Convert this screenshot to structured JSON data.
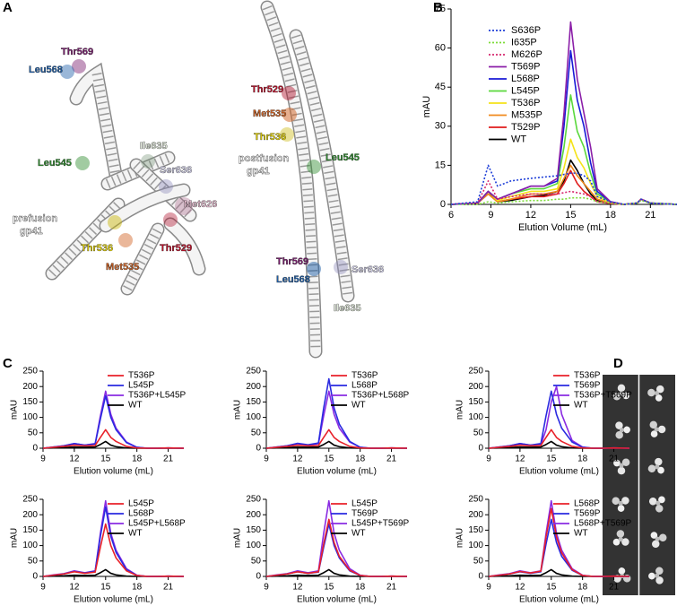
{
  "panel_labels": [
    "A",
    "B",
    "C",
    "D"
  ],
  "structures": {
    "prefusion": {
      "caption": [
        "prefusion",
        "gp41"
      ],
      "residues": [
        "Thr569",
        "Leu568",
        "Ile635",
        "Ser636",
        "Leu545",
        "Met626",
        "Thr536",
        "Thr529",
        "Met535"
      ]
    },
    "postfusion": {
      "caption": [
        "postfusion",
        "gp41"
      ],
      "residues": [
        "Thr529",
        "Met535",
        "Thr536",
        "Leu545",
        "Thr569",
        "Ser636",
        "Leu568",
        "Ile635"
      ]
    }
  },
  "chart_data": [
    {
      "type": "line",
      "x_label": "Elution Volume (mL)",
      "y_label": "mAU",
      "x": [
        6,
        8,
        8.8,
        9.5,
        10.5,
        12,
        13,
        14,
        14.5,
        15,
        15.5,
        16,
        16.5,
        17,
        18,
        19,
        20,
        20.3,
        21,
        23
      ],
      "xlim": [
        6,
        22.8
      ],
      "xticks": [
        6,
        9,
        12,
        15,
        18,
        21
      ],
      "ylim": [
        0,
        75
      ],
      "yticks": [
        0,
        15,
        30,
        45,
        60,
        75
      ],
      "series": [
        {
          "name": "S636P",
          "color": "#1f3fd8",
          "style": "dotted",
          "values": [
            0,
            1,
            15,
            7,
            9,
            10,
            10.5,
            11,
            11.5,
            12,
            12,
            11,
            9,
            3,
            1,
            0,
            0.5,
            2,
            0.5,
            0
          ]
        },
        {
          "name": "I635P",
          "color": "#7ddc3a",
          "style": "dotted",
          "values": [
            0,
            0,
            1,
            0.5,
            1,
            1.5,
            1.5,
            2,
            2,
            2.5,
            2.5,
            2.5,
            2,
            1,
            0.5,
            0,
            0.5,
            1.5,
            0.5,
            0
          ]
        },
        {
          "name": "M626P",
          "color": "#d6286e",
          "style": "dotted",
          "values": [
            0,
            0.5,
            9,
            2,
            3,
            4,
            4,
            4,
            4.5,
            5,
            4.5,
            4,
            3,
            1,
            0.5,
            0,
            0.5,
            2,
            0.5,
            0
          ]
        },
        {
          "name": "T569P",
          "color": "#8b1fa8",
          "style": "solid",
          "values": [
            0,
            0.5,
            5,
            2,
            4,
            7,
            7,
            10,
            35,
            70,
            48,
            35,
            22,
            6,
            1,
            0,
            0.5,
            2,
            0.5,
            0
          ]
        },
        {
          "name": "L568P",
          "color": "#1a1ad6",
          "style": "solid",
          "values": [
            0,
            0.5,
            5,
            2,
            4,
            7,
            7,
            9,
            30,
            59,
            40,
            30,
            16,
            5,
            1,
            0,
            0.5,
            2,
            0.5,
            0
          ]
        },
        {
          "name": "L545P",
          "color": "#5ad83c",
          "style": "solid",
          "values": [
            0,
            0.5,
            5,
            2,
            4,
            6,
            6,
            8,
            22,
            42,
            28,
            22,
            12,
            4,
            1,
            0,
            0.5,
            2,
            0.5,
            0
          ]
        },
        {
          "name": "T536P",
          "color": "#f5e31a",
          "style": "solid",
          "values": [
            0,
            0.5,
            5,
            1.5,
            3,
            5,
            5,
            6,
            14,
            25,
            18,
            14,
            8,
            3,
            0.5,
            0,
            0.5,
            2,
            0.5,
            0
          ]
        },
        {
          "name": "M535P",
          "color": "#f08a1e",
          "style": "solid",
          "values": [
            0,
            0.5,
            4,
            1,
            2,
            4,
            4,
            5,
            10,
            15,
            11,
            8,
            5,
            2,
            0.5,
            0,
            0.5,
            2,
            0.5,
            0
          ]
        },
        {
          "name": "T529P",
          "color": "#e01c1c",
          "style": "solid",
          "values": [
            0,
            0.5,
            4,
            1,
            2,
            3,
            3,
            4,
            8,
            13,
            8,
            5,
            3,
            1,
            0.3,
            0,
            0.5,
            2,
            0.5,
            0
          ]
        },
        {
          "name": "WT",
          "color": "#000000",
          "style": "solid",
          "values": [
            0,
            0.5,
            5,
            1,
            1.5,
            3,
            3.5,
            5,
            9,
            17,
            13,
            8,
            4,
            1.5,
            0.3,
            0,
            0.5,
            2,
            0.5,
            0
          ]
        }
      ]
    },
    {
      "type": "line",
      "x_label": "Elution volume (mL)",
      "y_label": "mAU",
      "x": [
        9,
        10,
        11,
        12,
        13,
        14,
        14.5,
        15,
        15.5,
        16,
        17,
        18,
        19,
        20,
        21,
        22.5
      ],
      "xlim": [
        9,
        22.5
      ],
      "xticks": [
        9,
        12,
        15,
        18,
        21
      ],
      "ylim": [
        0,
        250
      ],
      "yticks": [
        0,
        50,
        100,
        150,
        200,
        250
      ],
      "series": [
        {
          "name": "T536P",
          "color": "#e8212a",
          "style": "solid",
          "values": [
            0,
            3,
            6,
            10,
            8,
            9,
            35,
            60,
            35,
            22,
            6,
            1,
            0,
            0,
            1,
            0
          ]
        },
        {
          "name": "L545P",
          "color": "#2a2ae0",
          "style": "solid",
          "values": [
            0,
            4,
            8,
            15,
            10,
            14,
            95,
            170,
            100,
            60,
            18,
            3,
            0,
            0,
            1,
            0
          ]
        },
        {
          "name": "T536P+L545P",
          "color": "#8a2be2",
          "style": "solid",
          "values": [
            0,
            4,
            8,
            15,
            10,
            15,
            105,
            185,
            110,
            65,
            20,
            3,
            0,
            0,
            1,
            0
          ]
        },
        {
          "name": "WT",
          "color": "#000000",
          "style": "solid",
          "values": [
            0,
            1,
            2,
            4,
            3,
            4,
            12,
            22,
            10,
            5,
            1,
            0,
            0,
            0,
            0.5,
            0
          ]
        }
      ]
    },
    {
      "type": "line",
      "x_label": "Elution volume (mL)",
      "y_label": "mAU",
      "x": [
        9,
        10,
        11,
        12,
        13,
        14,
        14.5,
        15,
        15.5,
        16,
        17,
        18,
        19,
        20,
        21,
        22.5
      ],
      "xlim": [
        9,
        22.5
      ],
      "xticks": [
        9,
        12,
        15,
        18,
        21
      ],
      "ylim": [
        0,
        250
      ],
      "yticks": [
        0,
        50,
        100,
        150,
        200,
        250
      ],
      "series": [
        {
          "name": "T536P",
          "color": "#e8212a",
          "style": "solid",
          "values": [
            0,
            3,
            6,
            10,
            8,
            9,
            35,
            60,
            35,
            22,
            6,
            1,
            0,
            0,
            1,
            0
          ]
        },
        {
          "name": "L568P",
          "color": "#2a2ae0",
          "style": "solid",
          "values": [
            0,
            4,
            8,
            16,
            11,
            17,
            130,
            225,
            130,
            78,
            22,
            3,
            0,
            0,
            1,
            0
          ]
        },
        {
          "name": "T536P+L568P",
          "color": "#8a2be2",
          "style": "solid",
          "values": [
            0,
            4,
            8,
            15,
            10,
            15,
            105,
            185,
            110,
            65,
            20,
            3,
            0,
            0,
            1,
            0
          ]
        },
        {
          "name": "WT",
          "color": "#000000",
          "style": "solid",
          "values": [
            0,
            1,
            2,
            4,
            3,
            4,
            12,
            22,
            10,
            5,
            1,
            0,
            0,
            0,
            0.5,
            0
          ]
        }
      ]
    },
    {
      "type": "line",
      "x_label": "Elution volume (mL)",
      "y_label": "mAU",
      "x": [
        9,
        10,
        11,
        12,
        13,
        14,
        14.5,
        15,
        15.5,
        16,
        17,
        18,
        19,
        20,
        21,
        22.5
      ],
      "xlim": [
        9,
        22.5
      ],
      "xticks": [
        9,
        12,
        15,
        18,
        21
      ],
      "ylim": [
        0,
        250
      ],
      "yticks": [
        0,
        50,
        100,
        150,
        200,
        250
      ],
      "series": [
        {
          "name": "T536P",
          "color": "#e8212a",
          "style": "solid",
          "values": [
            0,
            3,
            6,
            10,
            8,
            9,
            35,
            60,
            35,
            22,
            6,
            1,
            0,
            0,
            1,
            0
          ]
        },
        {
          "name": "T569P",
          "color": "#2a2ae0",
          "style": "solid",
          "values": [
            0,
            4,
            8,
            15,
            10,
            15,
            105,
            185,
            110,
            65,
            20,
            3,
            0,
            0,
            1,
            0
          ]
        },
        {
          "name": "T536P+T569P",
          "color": "#8a2be2",
          "style": "solid",
          "values": [
            0,
            4,
            8,
            15,
            10,
            12,
            60,
            150,
            200,
            110,
            25,
            4,
            0,
            0,
            1,
            0
          ]
        },
        {
          "name": "WT",
          "color": "#000000",
          "style": "solid",
          "values": [
            0,
            1,
            2,
            4,
            3,
            4,
            12,
            22,
            10,
            5,
            1,
            0,
            0,
            0,
            0.5,
            0
          ]
        }
      ]
    },
    {
      "type": "line",
      "x_label": "Elution volume (mL)",
      "y_label": "mAU",
      "x": [
        9,
        10,
        11,
        12,
        13,
        14,
        14.5,
        15,
        15.5,
        16,
        17,
        18,
        19,
        20,
        21,
        22.5
      ],
      "xlim": [
        9,
        22.5
      ],
      "xticks": [
        9,
        12,
        15,
        18,
        21
      ],
      "ylim": [
        0,
        250
      ],
      "yticks": [
        0,
        50,
        100,
        150,
        200,
        250
      ],
      "series": [
        {
          "name": "L545P",
          "color": "#e8212a",
          "style": "solid",
          "values": [
            0,
            4,
            8,
            15,
            10,
            14,
            95,
            170,
            100,
            60,
            18,
            3,
            0,
            0,
            1,
            0
          ]
        },
        {
          "name": "L568P",
          "color": "#2a2ae0",
          "style": "solid",
          "values": [
            0,
            4,
            8,
            16,
            11,
            17,
            130,
            225,
            130,
            78,
            22,
            3,
            0,
            0,
            1,
            0
          ]
        },
        {
          "name": "L545P+L568P",
          "color": "#8a2be2",
          "style": "solid",
          "values": [
            0,
            5,
            9,
            18,
            12,
            18,
            140,
            245,
            140,
            85,
            25,
            4,
            0,
            0,
            1,
            0
          ]
        },
        {
          "name": "WT",
          "color": "#000000",
          "style": "solid",
          "values": [
            0,
            1,
            2,
            4,
            3,
            4,
            12,
            22,
            10,
            5,
            1,
            0,
            0,
            0,
            0.5,
            0
          ]
        }
      ]
    },
    {
      "type": "line",
      "x_label": "Elution volume (mL)",
      "y_label": "mAU",
      "x": [
        9,
        10,
        11,
        12,
        13,
        14,
        14.5,
        15,
        15.5,
        16,
        17,
        18,
        19,
        20,
        21,
        22.5
      ],
      "xlim": [
        9,
        22.5
      ],
      "xticks": [
        9,
        12,
        15,
        18,
        21
      ],
      "ylim": [
        0,
        250
      ],
      "yticks": [
        0,
        50,
        100,
        150,
        200,
        250
      ],
      "series": [
        {
          "name": "L545P",
          "color": "#e8212a",
          "style": "solid",
          "values": [
            0,
            4,
            8,
            15,
            10,
            15,
            105,
            185,
            110,
            65,
            20,
            3,
            0,
            0,
            1,
            0
          ]
        },
        {
          "name": "T569P",
          "color": "#2a2ae0",
          "style": "solid",
          "values": [
            0,
            4,
            8,
            15,
            10,
            14,
            95,
            170,
            100,
            60,
            18,
            3,
            0,
            0,
            1,
            0
          ]
        },
        {
          "name": "L545P+T569P",
          "color": "#8a2be2",
          "style": "solid",
          "values": [
            0,
            5,
            9,
            18,
            12,
            18,
            140,
            245,
            140,
            85,
            25,
            4,
            0,
            0,
            1,
            0
          ]
        },
        {
          "name": "WT",
          "color": "#000000",
          "style": "solid",
          "values": [
            0,
            1,
            2,
            4,
            3,
            4,
            12,
            22,
            10,
            5,
            1,
            0,
            0,
            0,
            0.5,
            0
          ]
        }
      ]
    },
    {
      "type": "line",
      "x_label": "Elution volume (mL)",
      "y_label": "mAU",
      "x": [
        9,
        10,
        11,
        12,
        13,
        14,
        14.5,
        15,
        15.5,
        16,
        17,
        18,
        19,
        20,
        21,
        22.5
      ],
      "xlim": [
        9,
        22.5
      ],
      "xticks": [
        9,
        12,
        15,
        18,
        21
      ],
      "ylim": [
        0,
        250
      ],
      "yticks": [
        0,
        50,
        100,
        150,
        200,
        250
      ],
      "series": [
        {
          "name": "L568P",
          "color": "#e8212a",
          "style": "solid",
          "values": [
            0,
            4,
            8,
            16,
            11,
            17,
            128,
            220,
            128,
            76,
            22,
            3,
            0,
            0,
            1,
            0
          ]
        },
        {
          "name": "T569P",
          "color": "#2a2ae0",
          "style": "solid",
          "values": [
            0,
            4,
            8,
            15,
            10,
            15,
            105,
            185,
            110,
            65,
            20,
            3,
            0,
            0,
            1,
            0
          ]
        },
        {
          "name": "L568P+T569P",
          "color": "#8a2be2",
          "style": "solid",
          "values": [
            0,
            5,
            9,
            18,
            12,
            18,
            140,
            245,
            140,
            85,
            25,
            4,
            0,
            0,
            1,
            0
          ]
        },
        {
          "name": "WT",
          "color": "#000000",
          "style": "solid",
          "values": [
            0,
            1,
            2,
            4,
            3,
            4,
            12,
            22,
            10,
            5,
            1,
            0,
            0,
            0,
            0.5,
            0
          ]
        }
      ]
    }
  ]
}
